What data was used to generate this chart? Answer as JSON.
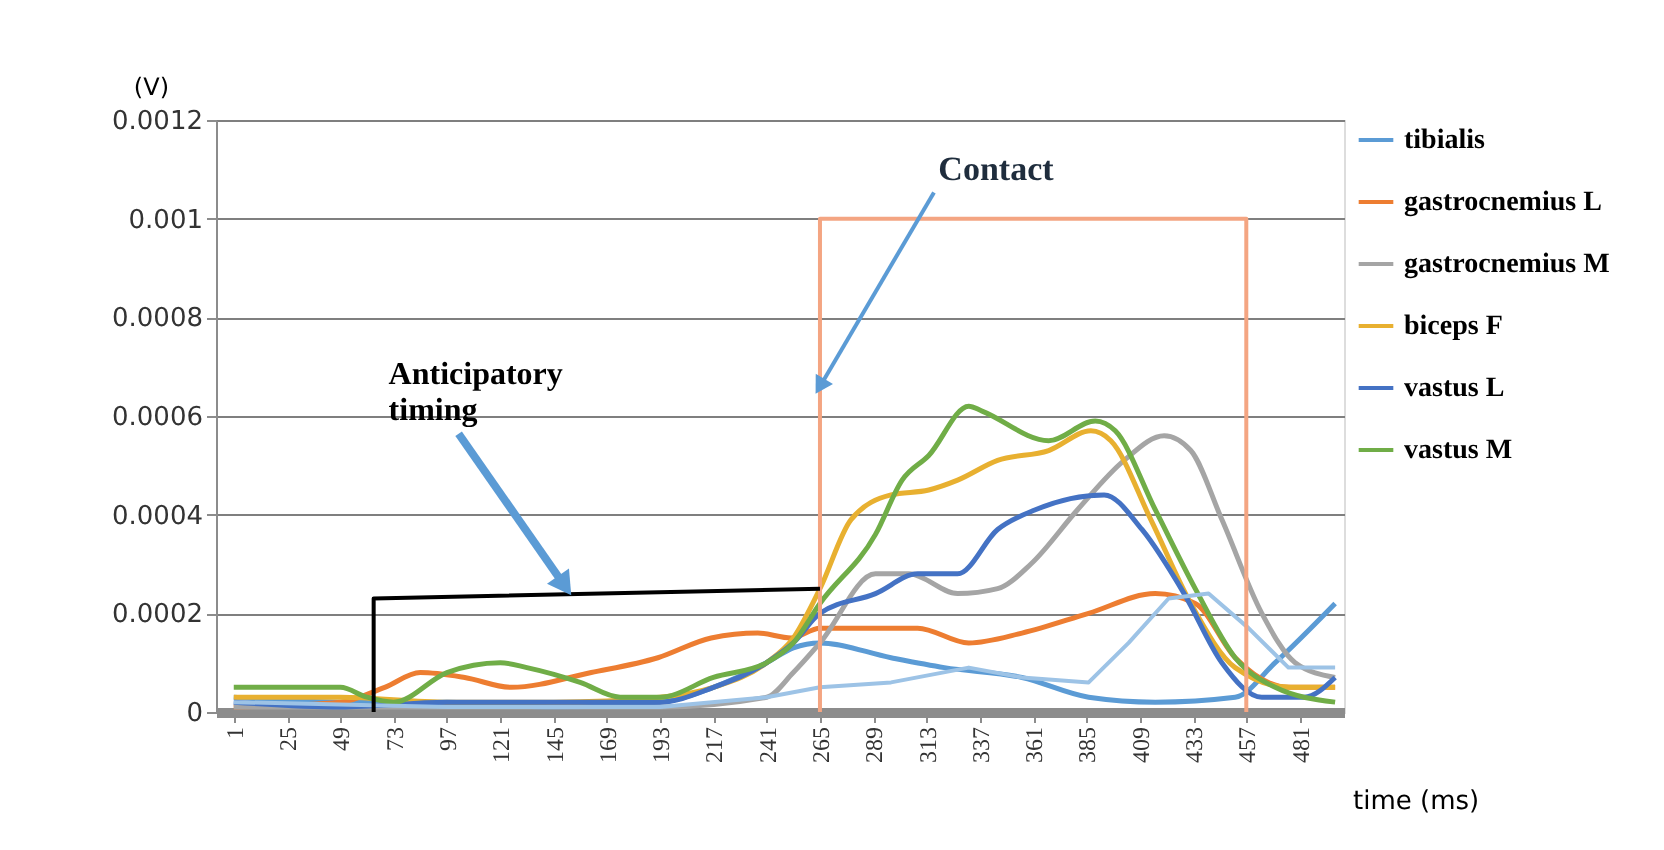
{
  "chart_data": {
    "type": "line",
    "ylabel": "(V)",
    "xlabel": "time (ms)",
    "xlim": [
      -7,
      501
    ],
    "xticks": [
      1,
      25,
      49,
      73,
      97,
      121,
      145,
      169,
      193,
      217,
      241,
      265,
      289,
      313,
      337,
      361,
      385,
      409,
      433,
      457,
      481
    ],
    "ylim": [
      0,
      0.0012
    ],
    "yticks": [
      0,
      0.0002,
      0.0004,
      0.0006,
      0.0008,
      0.001,
      0.0012
    ],
    "grid": "y",
    "legend": "right",
    "marker": "none",
    "line_style": "solid",
    "series": [
      {
        "name": "tibialis",
        "color": "#5b9bd5",
        "x": [
          1,
          49,
          97,
          145,
          193,
          217,
          241,
          253,
          265,
          297,
          321,
          356,
          386,
          416,
          452,
          470,
          497
        ],
        "values": [
          3e-05,
          2e-05,
          2e-05,
          1e-05,
          2e-05,
          5e-05,
          0.0001,
          0.00013,
          0.00014,
          0.00011,
          9e-05,
          7e-05,
          3e-05,
          2e-05,
          3e-05,
          0.0001,
          0.00022
        ]
      },
      {
        "name": "gastrocnemius L",
        "color": "#ed7d31",
        "x": [
          1,
          49,
          69,
          85,
          105,
          126,
          162,
          192,
          216,
          237,
          252,
          265,
          309,
          332,
          356,
          386,
          416,
          434,
          452,
          476,
          497
        ],
        "values": [
          1e-05,
          2e-05,
          5e-05,
          8e-05,
          7e-05,
          5e-05,
          8e-05,
          0.00011,
          0.00015,
          0.00016,
          0.00015,
          0.00017,
          0.00017,
          0.00014,
          0.00016,
          0.0002,
          0.00024,
          0.00022,
          0.00011,
          5e-05,
          5e-05
        ]
      },
      {
        "name": "gastrocnemius M",
        "color": "#a5a5a5",
        "x": [
          1,
          97,
          193,
          241,
          253,
          265,
          290,
          305,
          327,
          345,
          360,
          381,
          402,
          420,
          432,
          446,
          464,
          479,
          497
        ],
        "values": [
          1e-05,
          1e-05,
          1e-05,
          3e-05,
          8e-05,
          0.00014,
          0.00028,
          0.00028,
          0.00024,
          0.00025,
          0.0003,
          0.00041,
          0.00051,
          0.00056,
          0.00053,
          0.00039,
          0.0002,
          0.0001,
          7e-05
        ]
      },
      {
        "name": "biceps F",
        "color": "#e8b030",
        "x": [
          1,
          49,
          97,
          145,
          193,
          217,
          241,
          253,
          265,
          279,
          297,
          314,
          327,
          345,
          368,
          387,
          396,
          414,
          432,
          452,
          477,
          497
        ],
        "values": [
          3e-05,
          3e-05,
          2e-05,
          2e-05,
          3e-05,
          5e-05,
          0.0001,
          0.00015,
          0.00025,
          0.00039,
          0.00044,
          0.00045,
          0.00047,
          0.00051,
          0.00053,
          0.00057,
          0.00055,
          0.00039,
          0.00022,
          9e-05,
          5e-05,
          5e-05
        ]
      },
      {
        "name": "vastus L",
        "color": "#4472c4",
        "x": [
          1,
          49,
          97,
          145,
          193,
          217,
          241,
          253,
          265,
          290,
          309,
          327,
          345,
          362,
          393,
          410,
          429,
          446,
          464,
          483,
          497
        ],
        "values": [
          2e-05,
          1e-05,
          2e-05,
          2e-05,
          2e-05,
          5e-05,
          0.0001,
          0.00014,
          0.0002,
          0.00024,
          0.00028,
          0.00028,
          0.00037,
          0.00041,
          0.00044,
          0.00037,
          0.00024,
          0.0001,
          3e-05,
          3e-05,
          7e-05
        ]
      },
      {
        "name": "vastus M",
        "color": "#70ad47",
        "x": [
          1,
          25,
          49,
          61,
          73,
          97,
          121,
          133,
          157,
          175,
          193,
          217,
          241,
          253,
          265,
          290,
          302,
          314,
          332,
          338,
          368,
          389,
          398,
          416,
          434,
          452,
          470,
          497
        ],
        "values": [
          5e-05,
          5e-05,
          5e-05,
          3e-05,
          2e-05,
          8e-05,
          0.0001,
          9e-05,
          6e-05,
          3e-05,
          3e-05,
          7e-05,
          0.0001,
          0.00014,
          0.00022,
          0.00036,
          0.00047,
          0.00052,
          0.00062,
          0.00061,
          0.00055,
          0.00059,
          0.00057,
          0.00041,
          0.00025,
          0.00011,
          5e-05,
          2e-05
        ]
      },
      {
        "color": "#9dc3e6",
        "x": [
          1,
          97,
          193,
          241,
          265,
          297,
          332,
          356,
          386,
          404,
          422,
          440,
          458,
          476,
          497
        ],
        "values": [
          2e-05,
          1e-05,
          1e-05,
          3e-05,
          5e-05,
          6e-05,
          9e-05,
          7e-05,
          6e-05,
          0.00014,
          0.00023,
          0.00024,
          0.00017,
          9e-05,
          9e-05
        ]
      },
      {
        "color": "#f4a582",
        "x": [
          265,
          265,
          457,
          457
        ],
        "values": [
          0,
          0.001,
          0.001,
          0
        ]
      },
      {
        "color": "#000000",
        "x": [
          64,
          64,
          265
        ],
        "values": [
          0,
          0.00023,
          0.00025
        ]
      }
    ],
    "annotations": [
      {
        "text": "Contact",
        "x": 265,
        "y": 0.00066
      },
      {
        "text": "Anticipatory timing",
        "x": 150,
        "y": 0.000256
      }
    ]
  }
}
